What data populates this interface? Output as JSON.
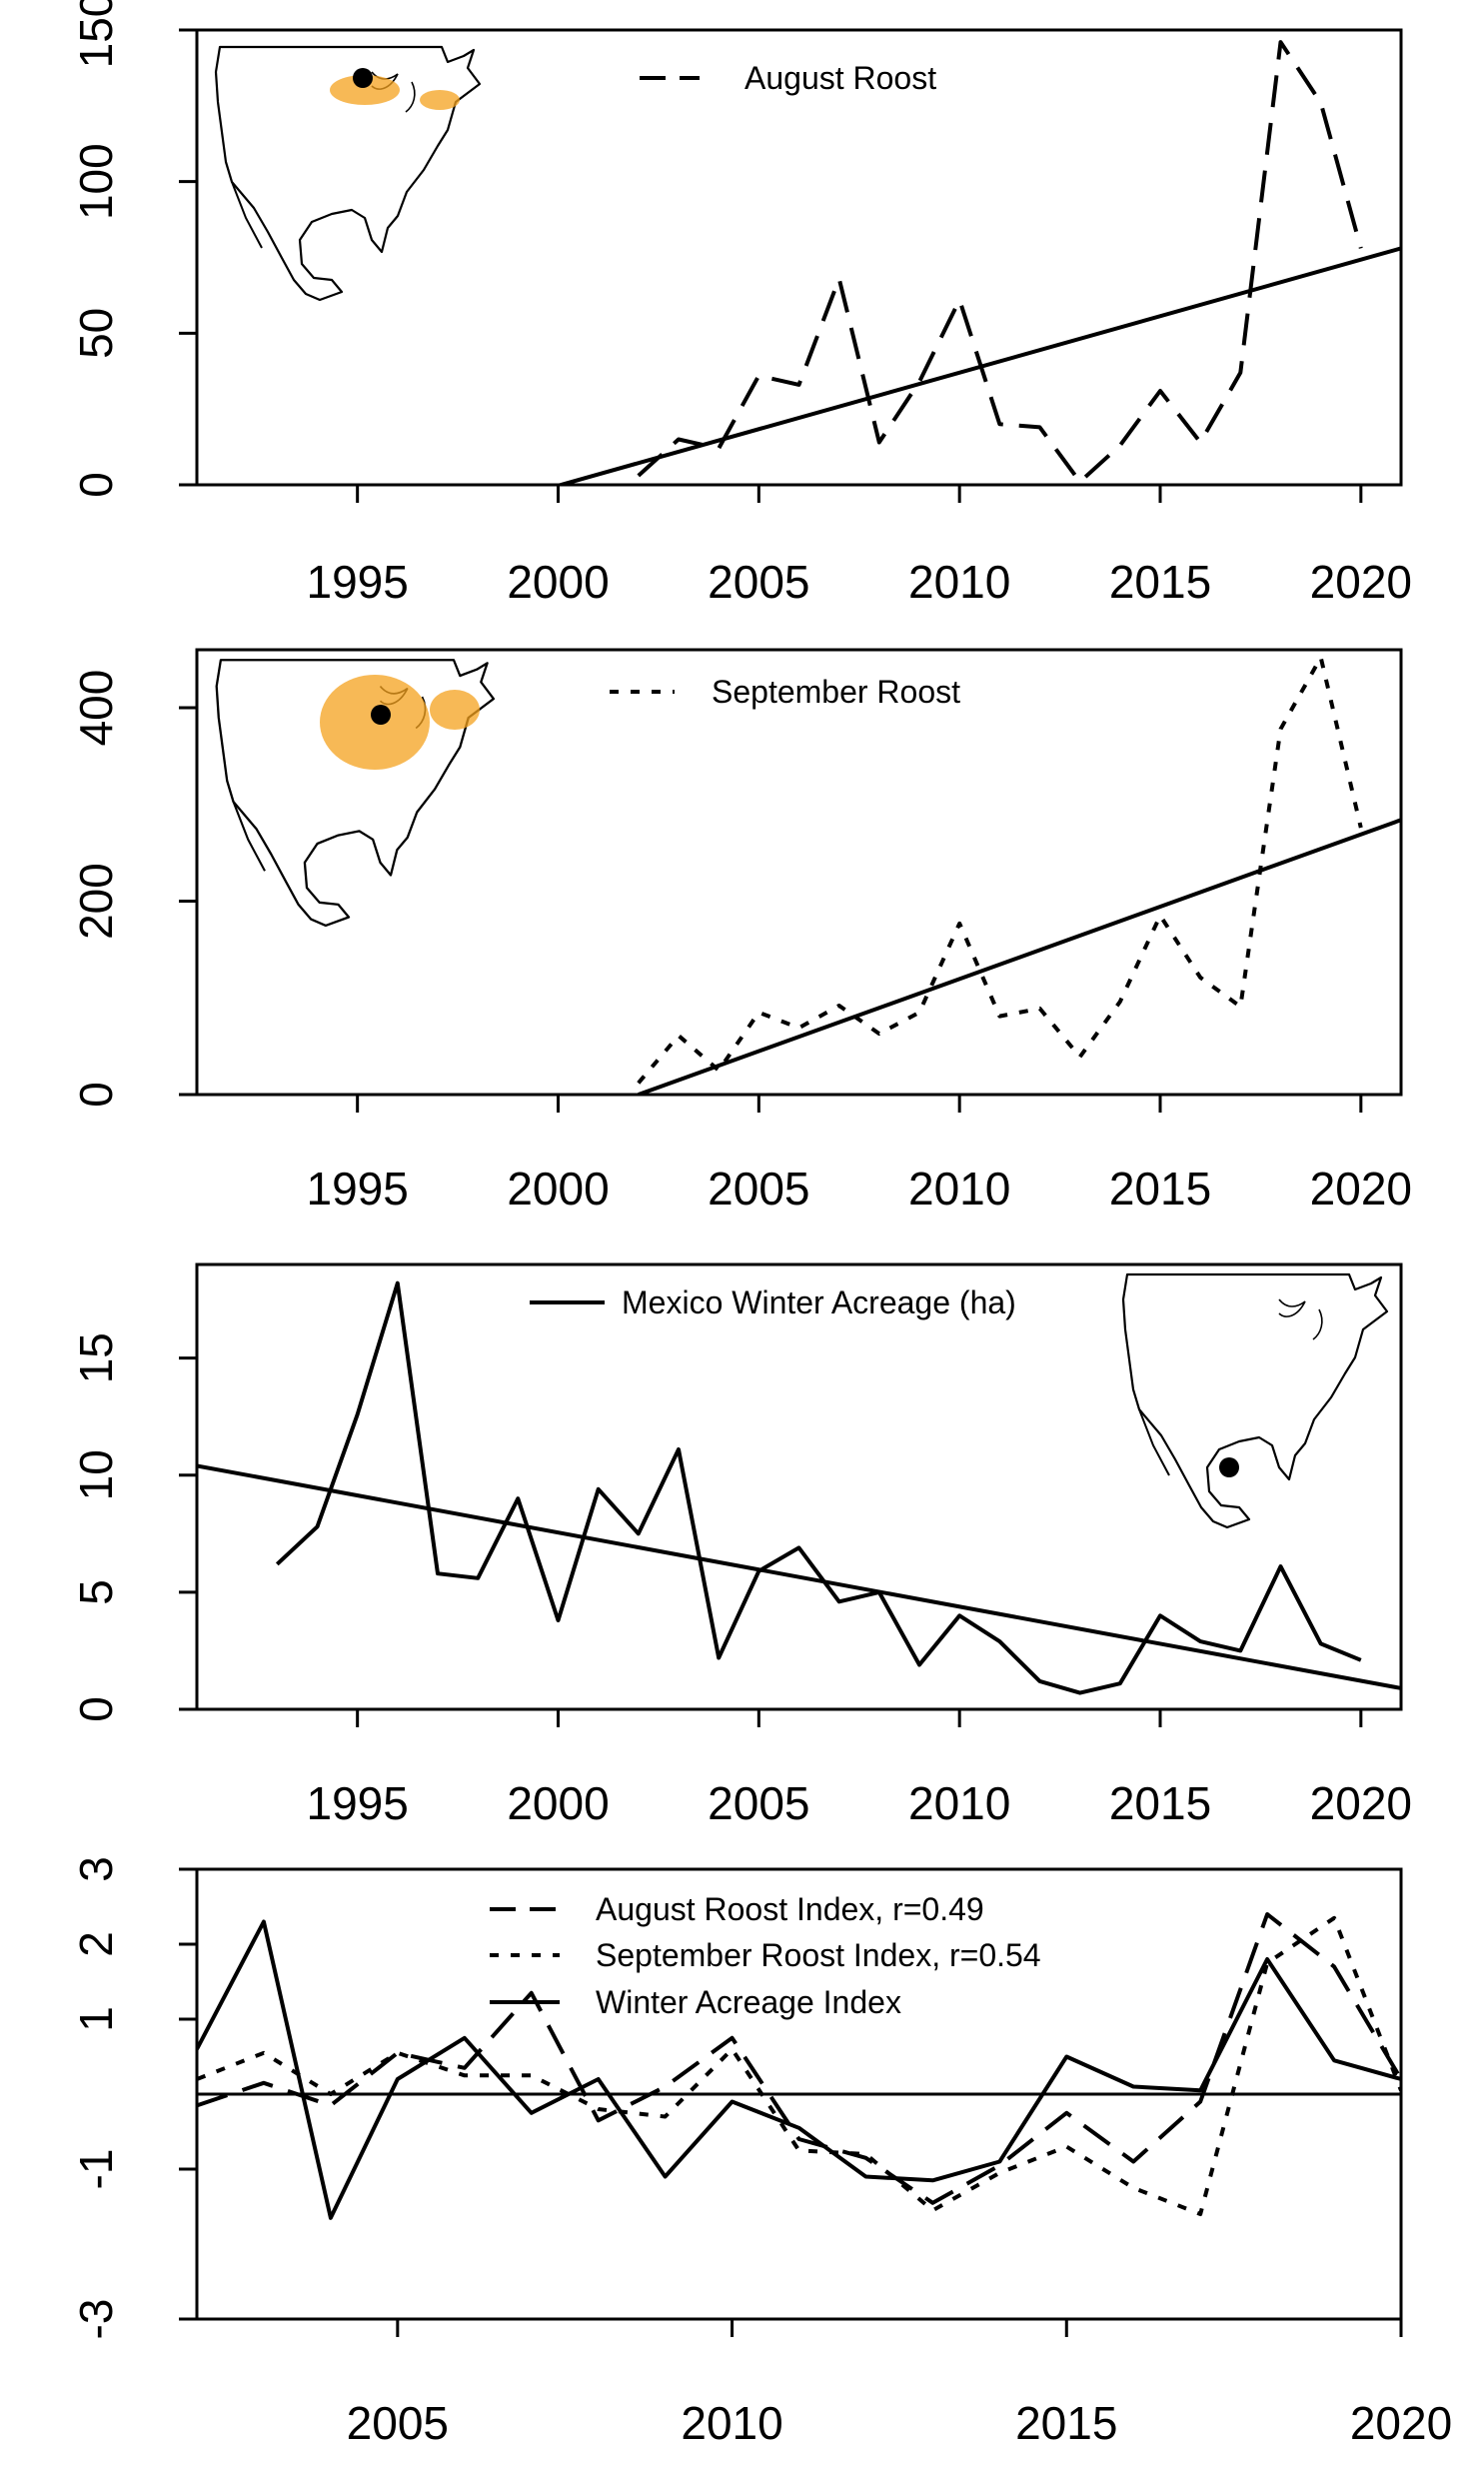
{
  "chart_data": [
    {
      "type": "line",
      "title": "",
      "xlabel": "",
      "ylabel": "",
      "xlim": [
        1991,
        2021
      ],
      "ylim": [
        0,
        150
      ],
      "x_ticks": [
        1995,
        2000,
        2005,
        2010,
        2015,
        2020
      ],
      "y_ticks": [
        0,
        50,
        100,
        150
      ],
      "legend_position": "top-center",
      "inset_map": "top-left",
      "series": [
        {
          "name": "August Roost",
          "style": "dashed",
          "x": [
            2002,
            2003,
            2004,
            2005,
            2006,
            2007,
            2008,
            2009,
            2010,
            2011,
            2012,
            2013,
            2014,
            2015,
            2016,
            2017,
            2018,
            2019,
            2020
          ],
          "values": [
            3,
            15,
            12,
            36,
            33,
            68,
            14,
            34,
            61,
            20,
            19,
            1,
            13,
            31,
            14,
            37,
            146,
            126,
            78
          ]
        }
      ],
      "trend": {
        "style": "solid",
        "x": [
          1999,
          2021
        ],
        "values": [
          -4,
          78
        ]
      }
    },
    {
      "type": "line",
      "title": "",
      "xlabel": "",
      "ylabel": "",
      "xlim": [
        1991,
        2021
      ],
      "ylim": [
        0,
        460
      ],
      "x_ticks": [
        1995,
        2000,
        2005,
        2010,
        2015,
        2020
      ],
      "y_ticks": [
        0,
        200,
        400
      ],
      "legend_position": "top-center",
      "inset_map": "top-left",
      "series": [
        {
          "name": "September Roost",
          "style": "dotted",
          "x": [
            2002,
            2003,
            2004,
            2005,
            2006,
            2007,
            2008,
            2009,
            2010,
            2011,
            2012,
            2013,
            2014,
            2015,
            2016,
            2017,
            2018,
            2019,
            2020
          ],
          "values": [
            12,
            61,
            25,
            85,
            69,
            92,
            63,
            85,
            177,
            81,
            89,
            39,
            96,
            185,
            121,
            91,
            378,
            452,
            276
          ]
        }
      ],
      "trend": {
        "style": "solid",
        "x": [
          2002,
          2021
        ],
        "values": [
          0,
          284
        ]
      }
    },
    {
      "type": "line",
      "title": "",
      "xlabel": "",
      "ylabel": "",
      "xlim": [
        1991,
        2021
      ],
      "ylim": [
        0,
        19
      ],
      "x_ticks": [
        1995,
        2000,
        2005,
        2010,
        2015,
        2020
      ],
      "y_ticks": [
        0,
        5,
        10,
        15
      ],
      "legend_position": "top-center",
      "inset_map": "right",
      "series": [
        {
          "name": "Mexico Winter Acreage (ha)",
          "style": "solid",
          "x": [
            1993,
            1994,
            1995,
            1996,
            1997,
            1998,
            1999,
            2000,
            2001,
            2002,
            2003,
            2004,
            2005,
            2006,
            2007,
            2008,
            2009,
            2010,
            2011,
            2012,
            2013,
            2014,
            2015,
            2016,
            2017,
            2018,
            2019,
            2020
          ],
          "values": [
            6.2,
            7.8,
            12.6,
            18.2,
            5.8,
            5.6,
            9.0,
            3.8,
            9.4,
            7.5,
            11.1,
            2.2,
            5.9,
            6.9,
            4.6,
            5.0,
            1.9,
            4.0,
            2.9,
            1.2,
            0.7,
            1.1,
            4.0,
            2.9,
            2.5,
            6.1,
            2.8,
            2.1
          ]
        }
      ],
      "trend": {
        "style": "solid",
        "x": [
          1991,
          2021
        ],
        "values": [
          10.4,
          0.9
        ]
      }
    },
    {
      "type": "line",
      "title": "",
      "xlabel": "",
      "ylabel": "",
      "xlim": [
        2002,
        2020
      ],
      "ylim": [
        -3,
        3
      ],
      "x_ticks": [
        2005,
        2010,
        2015,
        2020
      ],
      "y_ticks": [
        -3,
        -1,
        1,
        2,
        3
      ],
      "y_tick_labels": [
        "-3",
        "-1",
        "1",
        "2",
        "3"
      ],
      "zero_line": true,
      "legend_position": "top-center",
      "series": [
        {
          "name": "August Roost Index, r=0.49",
          "style": "dashed",
          "x": [
            2002,
            2003,
            2004,
            2005,
            2006,
            2007,
            2008,
            2009,
            2010,
            2011,
            2012,
            2013,
            2014,
            2015,
            2016,
            2017,
            2018,
            2019,
            2020
          ],
          "values": [
            -0.15,
            0.15,
            -0.15,
            0.55,
            0.35,
            1.35,
            -0.35,
            0.1,
            0.75,
            -0.6,
            -0.85,
            -1.45,
            -0.95,
            -0.25,
            -0.9,
            -0.1,
            2.4,
            1.7,
            0.2
          ]
        },
        {
          "name": "September Roost Index, r=0.54",
          "style": "dotted",
          "x": [
            2002,
            2003,
            2004,
            2005,
            2006,
            2007,
            2008,
            2009,
            2010,
            2011,
            2012,
            2013,
            2014,
            2015,
            2016,
            2017,
            2018,
            2019,
            2020
          ],
          "values": [
            0.2,
            0.55,
            0.0,
            0.55,
            0.25,
            0.25,
            -0.2,
            -0.3,
            0.6,
            -0.75,
            -0.8,
            -1.55,
            -1.05,
            -0.7,
            -1.25,
            -1.6,
            1.75,
            2.35,
            0.05
          ]
        },
        {
          "name": "Winter Acreage Index",
          "style": "solid",
          "x": [
            2002,
            2003,
            2004,
            2005,
            2006,
            2007,
            2008,
            2009,
            2010,
            2011,
            2012,
            2013,
            2014,
            2015,
            2016,
            2017,
            2018,
            2019,
            2020
          ],
          "values": [
            0.6,
            2.3,
            -1.65,
            0.2,
            0.75,
            -0.25,
            0.2,
            -1.1,
            -0.1,
            -0.45,
            -1.1,
            -1.15,
            -0.9,
            0.5,
            0.1,
            0.05,
            1.8,
            0.45,
            0.2
          ]
        }
      ]
    }
  ]
}
